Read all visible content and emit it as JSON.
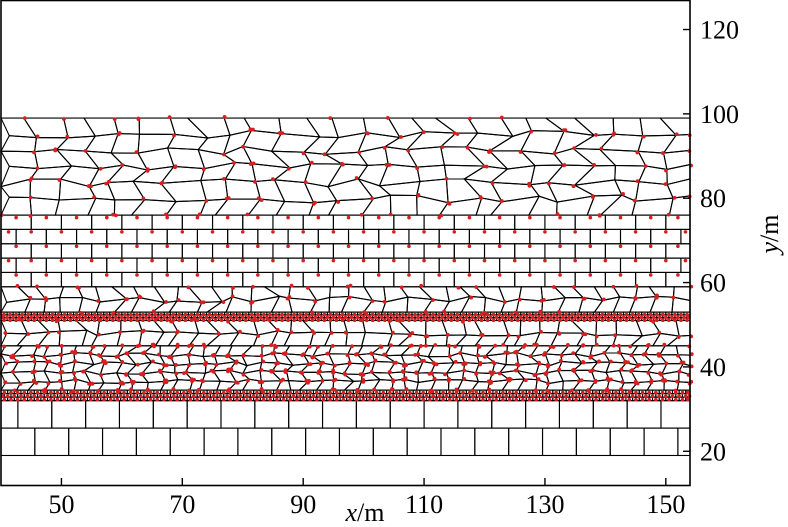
{
  "chart_data": {
    "type": "scatter",
    "xlabel": {
      "var": "x",
      "unit": "/m"
    },
    "ylabel": {
      "var": "y",
      "unit": "/m"
    },
    "xlim": [
      40,
      154
    ],
    "ylim": [
      12,
      127
    ],
    "x_ticks": [
      50,
      70,
      90,
      110,
      130,
      150
    ],
    "y_ticks": [
      20,
      40,
      60,
      80,
      100,
      120
    ],
    "y_axis_side": "right",
    "grid": false,
    "legend": "none",
    "colors": {
      "mesh": "#000000",
      "points": "#d62020"
    },
    "layers": [
      {
        "name": "bottom-blocks",
        "mesh": "rectangular",
        "y_range": [
          19,
          32
        ],
        "cell_width": 5.6
      },
      {
        "name": "foundation-row",
        "mesh": "rectangular",
        "y_range": [
          32,
          34.5
        ],
        "cell_width": 1.1
      },
      {
        "name": "dense-lower-layer",
        "mesh": "voronoi",
        "y_range": [
          34.5,
          45
        ],
        "cell_size": 2.4
      },
      {
        "name": "lower-middle-layer",
        "mesh": "voronoi",
        "y_range": [
          45,
          51
        ],
        "cell_size": 3.2
      },
      {
        "name": "thin-bands",
        "mesh": "rectangular",
        "y_range": [
          51,
          53
        ],
        "cell_width": 1.0
      },
      {
        "name": "upper-middle-layer",
        "mesh": "voronoi",
        "y_range": [
          53,
          59
        ],
        "cell_size": 3.2
      },
      {
        "name": "brick-layer",
        "mesh": "rectangular",
        "y_range": [
          59,
          76
        ],
        "cell_width": 5.0
      },
      {
        "name": "top-layer",
        "mesh": "voronoi",
        "y_range": [
          76,
          99
        ],
        "cell_size": 4.6
      }
    ]
  }
}
